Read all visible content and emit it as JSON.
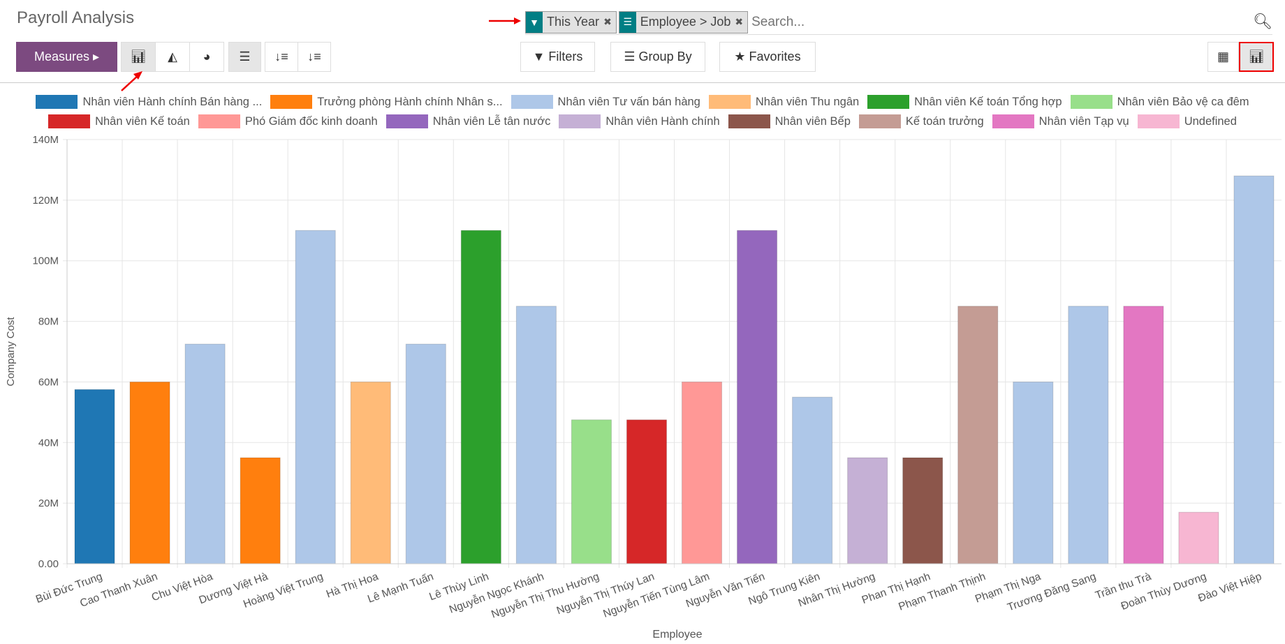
{
  "header": {
    "title": "Payroll Analysis"
  },
  "search": {
    "facets": [
      {
        "icon": "filter-icon",
        "label": "This Year"
      },
      {
        "icon": "group-by-icon",
        "label": "Employee > Job"
      }
    ],
    "placeholder": "Search..."
  },
  "toolbar": {
    "measures_label": "Measures",
    "filters_label": "Filters",
    "group_by_label": "Group By",
    "favorites_label": "Favorites",
    "active_chart_type": "bar",
    "active_view": "graph"
  },
  "chart_data": {
    "type": "bar",
    "xlabel": "Employee",
    "ylabel": "Company Cost",
    "ylim": [
      0,
      140000000
    ],
    "yticks": [
      "0.00",
      "20M",
      "40M",
      "60M",
      "80M",
      "100M",
      "120M",
      "140M"
    ],
    "grid": true,
    "legend_position": "top",
    "legend": [
      {
        "name": "Nhân viên Hành chính Bán hàng ...",
        "color": "#1f77b4"
      },
      {
        "name": "Trưởng phòng Hành chính Nhân s...",
        "color": "#ff7f0e"
      },
      {
        "name": "Nhân viên Tư vấn bán hàng",
        "color": "#aec7e8"
      },
      {
        "name": "Nhân viên Thu ngân",
        "color": "#ffbb78"
      },
      {
        "name": "Nhân viên Kế toán Tổng hợp",
        "color": "#2ca02c"
      },
      {
        "name": "Nhân viên Bảo vệ ca đêm",
        "color": "#98df8a"
      },
      {
        "name": "Nhân viên Kế toán",
        "color": "#d62728"
      },
      {
        "name": "Phó Giám đốc kinh doanh",
        "color": "#ff9896"
      },
      {
        "name": "Nhân viên Lễ tân nước",
        "color": "#9467bd"
      },
      {
        "name": "Nhân viên Hành chính",
        "color": "#c5b0d5"
      },
      {
        "name": "Nhân viên Bếp",
        "color": "#8c564b"
      },
      {
        "name": "Kế toán trưởng",
        "color": "#c49c94"
      },
      {
        "name": "Nhân viên Tạp vụ",
        "color": "#e377c2"
      },
      {
        "name": "Undefined",
        "color": "#f7b6d2"
      }
    ],
    "categories": [
      "Bùi Đức Trung",
      "Cao Thanh Xuân",
      "Chu Việt Hòa",
      "Dương Việt Hà",
      "Hoàng Việt Trung",
      "Hà Thị Hoa",
      "Lê Mạnh Tuấn",
      "Lê Thùy Linh",
      "Nguyễn Ngọc Khánh",
      "Nguyễn Thị Thu Hường",
      "Nguyễn Thị Thúy Lan",
      "Nguyễn Tiến Tùng Lâm",
      "Nguyễn Văn Tiến",
      "Ngô Trung Kiên",
      "Nhân Thị Hường",
      "Phan Thị Hạnh",
      "Phạm Thanh Thịnh",
      "Phạm Thị Nga",
      "Trương Đăng Sang",
      "Trần thu Trà",
      "Đoàn Thùy Dương",
      "Đào Việt Hiệp"
    ],
    "values": [
      57500000,
      60000000,
      72500000,
      35000000,
      110000000,
      60000000,
      72500000,
      110000000,
      85000000,
      47500000,
      47500000,
      60000000,
      110000000,
      55000000,
      35000000,
      35000000,
      85000000,
      60000000,
      85000000,
      85000000,
      17000000,
      128000000
    ],
    "bar_series": [
      0,
      1,
      2,
      1,
      2,
      3,
      2,
      4,
      2,
      5,
      6,
      7,
      8,
      2,
      9,
      10,
      11,
      2,
      2,
      12,
      13,
      2
    ]
  }
}
